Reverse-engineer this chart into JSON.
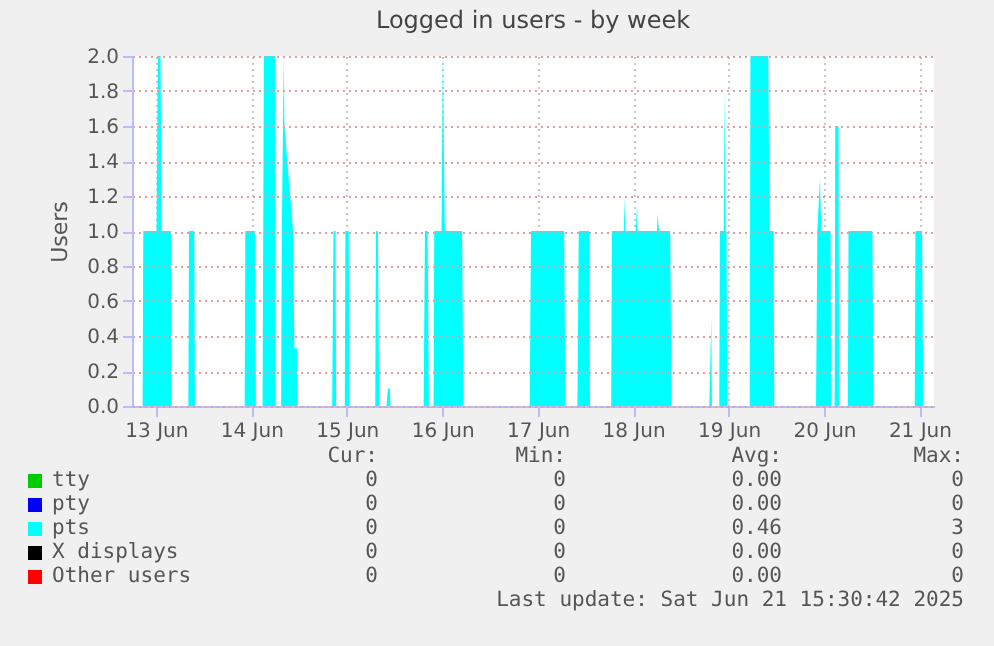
{
  "chart_data": {
    "type": "area",
    "title": "Logged in users - by week",
    "ylabel": "Users",
    "xlim": [
      "2025-06-12T18:00",
      "2025-06-21T03:40"
    ],
    "xticks": [
      {
        "value": "2025-06-13T00:00",
        "label": "13 Jun"
      },
      {
        "value": "2025-06-14T00:00",
        "label": "14 Jun"
      },
      {
        "value": "2025-06-15T00:00",
        "label": "15 Jun"
      },
      {
        "value": "2025-06-16T00:00",
        "label": "16 Jun"
      },
      {
        "value": "2025-06-17T00:00",
        "label": "17 Jun"
      },
      {
        "value": "2025-06-18T00:00",
        "label": "18 Jun"
      },
      {
        "value": "2025-06-19T00:00",
        "label": "19 Jun"
      },
      {
        "value": "2025-06-20T00:00",
        "label": "20 Jun"
      },
      {
        "value": "2025-06-21T00:00",
        "label": "21 Jun"
      }
    ],
    "ylim": [
      0,
      2
    ],
    "yticks": [
      {
        "value": 0,
        "label": "0.0"
      },
      {
        "value": 0.2,
        "label": "0.2"
      },
      {
        "value": 0.4,
        "label": "0.4"
      },
      {
        "value": 0.6,
        "label": "0.6"
      },
      {
        "value": 0.8,
        "label": "0.8"
      },
      {
        "value": 1,
        "label": "1.0"
      },
      {
        "value": 1.2,
        "label": "1.2"
      },
      {
        "value": 1.4,
        "label": "1.4"
      },
      {
        "value": 1.6,
        "label": "1.6"
      },
      {
        "value": 1.8,
        "label": "1.8"
      },
      {
        "value": 2,
        "label": "2.0"
      }
    ],
    "grid": true,
    "legend": "bottom",
    "series": [
      {
        "name": "tty",
        "color": "#00cc00",
        "values": [
          null
        ]
      },
      {
        "name": "pty",
        "color": "#0000ff",
        "values": [
          null
        ]
      },
      {
        "name": "pts",
        "color": "#00ffff",
        "x": [
          "2025-06-12T18:00",
          "2025-06-12T20:40",
          "2025-06-12T20:50",
          "2025-06-13T00:10",
          "2025-06-13T00:30",
          "2025-06-13T01:10",
          "2025-06-13T01:30",
          "2025-06-13T03:50",
          "2025-06-13T04:00",
          "2025-06-13T08:10",
          "2025-06-13T08:20",
          "2025-06-13T09:40",
          "2025-06-13T09:50",
          "2025-06-13T22:20",
          "2025-06-13T22:30",
          "2025-06-14T01:00",
          "2025-06-14T01:10",
          "2025-06-14T02:50",
          "2025-06-14T03:10",
          "2025-06-14T06:00",
          "2025-06-14T06:10",
          "2025-06-14T07:30",
          "2025-06-14T07:40",
          "2025-06-14T08:10",
          "2025-06-14T08:20",
          "2025-06-14T10:30",
          "2025-06-14T10:50",
          "2025-06-14T11:30",
          "2025-06-14T11:40",
          "2025-06-14T20:20",
          "2025-06-14T20:40",
          "2025-06-14T21:10",
          "2025-06-14T21:20",
          "2025-06-14T23:30",
          "2025-06-14T23:40",
          "2025-06-15T00:30",
          "2025-06-15T00:40",
          "2025-06-15T07:10",
          "2025-06-15T07:20",
          "2025-06-15T07:50",
          "2025-06-15T08:10",
          "2025-06-15T10:00",
          "2025-06-15T10:20",
          "2025-06-15T10:50",
          "2025-06-15T11:00",
          "2025-06-15T19:20",
          "2025-06-15T19:40",
          "2025-06-15T20:20",
          "2025-06-15T20:40",
          "2025-06-15T21:50",
          "2025-06-15T22:00",
          "2025-06-15T23:50",
          "2025-06-16T00:10",
          "2025-06-16T00:40",
          "2025-06-16T05:00",
          "2025-06-16T05:20",
          "2025-06-16T22:00",
          "2025-06-16T22:20",
          "2025-06-17T06:40",
          "2025-06-17T07:00",
          "2025-06-17T10:00",
          "2025-06-17T10:20",
          "2025-06-17T13:00",
          "2025-06-17T13:10",
          "2025-06-17T18:30",
          "2025-06-17T18:40",
          "2025-06-17T21:40",
          "2025-06-17T21:50",
          "2025-06-17T22:00",
          "2025-06-18T00:40",
          "2025-06-18T01:00",
          "2025-06-18T01:10",
          "2025-06-18T06:00",
          "2025-06-18T06:10",
          "2025-06-18T06:30",
          "2025-06-18T09:20",
          "2025-06-18T09:40",
          "2025-06-18T19:10",
          "2025-06-18T19:40",
          "2025-06-18T19:50",
          "2025-06-18T21:40",
          "2025-06-18T21:50",
          "2025-06-18T22:50",
          "2025-06-18T23:00",
          "2025-06-18T23:20",
          "2025-06-18T23:30",
          "2025-06-18T23:40",
          "2025-06-19T05:20",
          "2025-06-19T05:30",
          "2025-06-19T10:00",
          "2025-06-19T10:20",
          "2025-06-19T11:20",
          "2025-06-19T11:30",
          "2025-06-19T22:00",
          "2025-06-19T22:20",
          "2025-06-19T23:00",
          "2025-06-19T23:20",
          "2025-06-20T01:40",
          "2025-06-20T01:50",
          "2025-06-20T02:40",
          "2025-06-20T02:50",
          "2025-06-20T03:40",
          "2025-06-20T03:50",
          "2025-06-20T06:00",
          "2025-06-20T06:10",
          "2025-06-20T12:10",
          "2025-06-20T12:30",
          "2025-06-20T22:50",
          "2025-06-20T23:00",
          "2025-06-21T00:40",
          "2025-06-21T01:00",
          "2025-06-21T03:40"
        ],
        "values": [
          0,
          0,
          1,
          1,
          2,
          2,
          1,
          1,
          0,
          0,
          1,
          1,
          0,
          0,
          1,
          1,
          0,
          0,
          2,
          2,
          0,
          0,
          1,
          2,
          1.6,
          1,
          0.33,
          0.33,
          0,
          0,
          1,
          1,
          0,
          0,
          1,
          1,
          0,
          0,
          1,
          1,
          0,
          0,
          0.1,
          0.1,
          0,
          0,
          1,
          1,
          0,
          0,
          1,
          1,
          2,
          1,
          1,
          0,
          0,
          1,
          1,
          0,
          0,
          1,
          1,
          0,
          0,
          1,
          1,
          1.2,
          1,
          1,
          1.15,
          1,
          1,
          1.1,
          1,
          1,
          0,
          0,
          0.5,
          0,
          0,
          1,
          1,
          1.8,
          1,
          1,
          0,
          0,
          2,
          2,
          1,
          1,
          0,
          0,
          1,
          1.3,
          1,
          1,
          0,
          0,
          1.6,
          1.6,
          0,
          0,
          1,
          1,
          0,
          0,
          1,
          1,
          0,
          0
        ]
      },
      {
        "name": "X displays",
        "color": "#000000",
        "values": [
          null
        ]
      },
      {
        "name": "Other users",
        "color": "#ff0000",
        "values": [
          null
        ]
      }
    ],
    "annotations": [
      "Cur:",
      "Min:",
      "Avg:",
      "Max:",
      "0",
      "0",
      "0.00",
      "0",
      "0",
      "0",
      "0.00",
      "0",
      "0",
      "0",
      "0.46",
      "3",
      "0",
      "0",
      "0.00",
      "0",
      "0",
      "0",
      "0.00",
      "0",
      "Last update: Sat Jun 21 15:30:42 2025"
    ]
  }
}
